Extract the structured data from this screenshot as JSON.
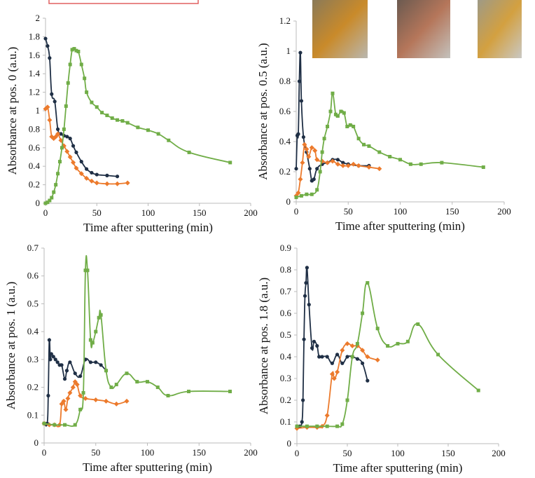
{
  "chart_data": [
    {
      "type": "line",
      "ylabel": "Absorbance at pos. 0 (a.u.)",
      "xlabel": "Time after sputtering (min)",
      "xlim": [
        0,
        200
      ],
      "ylim": [
        0,
        2
      ],
      "xticks": [
        0,
        50,
        100,
        150,
        200
      ],
      "yticks": [
        0,
        0.2,
        0.4,
        0.6,
        0.8,
        1,
        1.2,
        1.4,
        1.6,
        1.8,
        2
      ],
      "series": [
        {
          "color": "#1f2f45",
          "marker": "circle",
          "x": [
            0,
            2,
            4,
            6,
            9,
            12,
            15,
            18,
            21,
            24,
            27,
            30,
            35,
            40,
            45,
            50,
            60,
            70
          ],
          "values": [
            1.78,
            1.7,
            1.57,
            1.18,
            1.1,
            0.8,
            0.75,
            0.73,
            0.72,
            0.7,
            0.62,
            0.55,
            0.45,
            0.37,
            0.33,
            0.31,
            0.3,
            0.29
          ]
        },
        {
          "color": "#ec7a2c",
          "marker": "diamond",
          "x": [
            0,
            2,
            4,
            6,
            8,
            10,
            12,
            15,
            18,
            21,
            24,
            27,
            30,
            35,
            40,
            45,
            50,
            60,
            70,
            80
          ],
          "values": [
            1.02,
            1.04,
            0.9,
            0.72,
            0.7,
            0.72,
            0.75,
            0.68,
            0.62,
            0.56,
            0.5,
            0.44,
            0.38,
            0.32,
            0.27,
            0.24,
            0.22,
            0.21,
            0.21,
            0.22
          ]
        },
        {
          "color": "#70ad47",
          "marker": "square",
          "x": [
            0,
            2,
            4,
            6,
            8,
            10,
            12,
            14,
            16,
            18,
            20,
            22,
            24,
            26,
            28,
            30,
            32,
            35,
            38,
            40,
            45,
            50,
            55,
            60,
            65,
            70,
            75,
            80,
            90,
            100,
            110,
            120,
            140,
            180
          ],
          "values": [
            0,
            0.01,
            0.03,
            0.06,
            0.12,
            0.2,
            0.32,
            0.45,
            0.6,
            0.8,
            1.05,
            1.3,
            1.5,
            1.66,
            1.67,
            1.65,
            1.64,
            1.5,
            1.35,
            1.2,
            1.09,
            1.04,
            0.98,
            0.95,
            0.92,
            0.9,
            0.89,
            0.87,
            0.82,
            0.79,
            0.75,
            0.68,
            0.55,
            0.44
          ]
        }
      ]
    },
    {
      "type": "line",
      "ylabel": "Absorbance at pos. 0.5 (a.u.)",
      "xlabel": "Time after sputtering (min)",
      "xlim": [
        0,
        200
      ],
      "ylim": [
        0,
        1.2
      ],
      "xticks": [
        0,
        50,
        100,
        150,
        200
      ],
      "yticks": [
        0,
        0.2,
        0.4,
        0.6,
        0.8,
        1,
        1.2
      ],
      "series": [
        {
          "color": "#1f2f45",
          "marker": "circle",
          "x": [
            0,
            1,
            2,
            3,
            4,
            5,
            7,
            10,
            13,
            15,
            17,
            20,
            25,
            30,
            35,
            40,
            45,
            50,
            60,
            70
          ],
          "values": [
            0.22,
            0.44,
            0.45,
            0.8,
            0.99,
            0.67,
            0.43,
            0.33,
            0.22,
            0.14,
            0.15,
            0.22,
            0.25,
            0.26,
            0.28,
            0.28,
            0.26,
            0.25,
            0.24,
            0.24
          ]
        },
        {
          "color": "#ec7a2c",
          "marker": "diamond",
          "x": [
            0,
            2,
            4,
            6,
            8,
            10,
            12,
            15,
            18,
            20,
            25,
            30,
            35,
            40,
            45,
            50,
            55,
            60,
            70,
            80
          ],
          "values": [
            0.04,
            0.06,
            0.15,
            0.26,
            0.38,
            0.35,
            0.3,
            0.36,
            0.34,
            0.28,
            0.27,
            0.26,
            0.27,
            0.25,
            0.24,
            0.24,
            0.25,
            0.24,
            0.23,
            0.22
          ]
        },
        {
          "color": "#70ad47",
          "marker": "square",
          "x": [
            0,
            5,
            10,
            15,
            20,
            23,
            25,
            27,
            30,
            33,
            35,
            38,
            40,
            43,
            46,
            49,
            52,
            55,
            60,
            65,
            70,
            80,
            90,
            100,
            110,
            120,
            140,
            180
          ],
          "values": [
            0.03,
            0.04,
            0.05,
            0.05,
            0.08,
            0.2,
            0.33,
            0.42,
            0.5,
            0.6,
            0.72,
            0.58,
            0.57,
            0.6,
            0.59,
            0.5,
            0.51,
            0.5,
            0.42,
            0.38,
            0.37,
            0.33,
            0.3,
            0.28,
            0.25,
            0.25,
            0.26,
            0.23
          ]
        }
      ]
    },
    {
      "type": "line",
      "ylabel": "Absorbance at pos. 1 (a.u.)",
      "xlabel": "Time after sputtering (min)",
      "xlim": [
        0,
        200
      ],
      "ylim": [
        0,
        0.7
      ],
      "xticks": [
        0,
        50,
        100,
        150,
        200
      ],
      "yticks": [
        0,
        0.1,
        0.2,
        0.3,
        0.4,
        0.5,
        0.6,
        0.7
      ],
      "series": [
        {
          "color": "#1f2f45",
          "marker": "circle",
          "x": [
            0,
            3,
            4,
            5,
            6,
            7,
            9,
            11,
            13,
            15,
            17,
            20,
            22,
            25,
            30,
            35,
            40,
            45,
            50,
            55,
            60
          ],
          "values": [
            0.07,
            0.07,
            0.17,
            0.37,
            0.3,
            0.32,
            0.31,
            0.3,
            0.29,
            0.28,
            0.28,
            0.23,
            0.26,
            0.29,
            0.25,
            0.24,
            0.3,
            0.29,
            0.29,
            0.28,
            0.26
          ]
        },
        {
          "color": "#ec7a2c",
          "marker": "diamond",
          "x": [
            0,
            5,
            10,
            15,
            17,
            19,
            21,
            23,
            25,
            28,
            30,
            32,
            35,
            40,
            50,
            60,
            70,
            80
          ],
          "values": [
            0.07,
            0.065,
            0.065,
            0.065,
            0.14,
            0.15,
            0.12,
            0.16,
            0.18,
            0.2,
            0.22,
            0.21,
            0.17,
            0.16,
            0.155,
            0.15,
            0.14,
            0.15
          ]
        },
        {
          "color": "#70ad47",
          "marker": "square",
          "x": [
            0,
            10,
            20,
            30,
            35,
            38,
            40,
            42,
            45,
            47,
            50,
            53,
            55,
            60,
            65,
            70,
            80,
            90,
            100,
            110,
            120,
            140,
            180
          ],
          "values": [
            0.07,
            0.065,
            0.065,
            0.065,
            0.12,
            0.18,
            0.62,
            0.62,
            0.37,
            0.36,
            0.4,
            0.45,
            0.46,
            0.26,
            0.2,
            0.21,
            0.25,
            0.22,
            0.22,
            0.2,
            0.17,
            0.185,
            0.185
          ]
        }
      ]
    },
    {
      "type": "line",
      "ylabel": "Absorbance at pos. 1.8 (a.u.)",
      "xlabel": "Time after sputtering (min)",
      "xlim": [
        0,
        200
      ],
      "ylim": [
        0,
        0.9
      ],
      "xticks": [
        0,
        50,
        100,
        150,
        200
      ],
      "yticks": [
        0,
        0.1,
        0.2,
        0.3,
        0.4,
        0.5,
        0.6,
        0.7,
        0.8,
        0.9
      ],
      "series": [
        {
          "color": "#1f2f45",
          "marker": "circle",
          "x": [
            0,
            3,
            5,
            6,
            7,
            8,
            9,
            10,
            12,
            15,
            17,
            20,
            22,
            25,
            30,
            35,
            40,
            45,
            50,
            55,
            60,
            65,
            70
          ],
          "values": [
            0.08,
            0.08,
            0.1,
            0.2,
            0.48,
            0.68,
            0.74,
            0.81,
            0.64,
            0.44,
            0.47,
            0.45,
            0.4,
            0.4,
            0.4,
            0.37,
            0.41,
            0.37,
            0.4,
            0.4,
            0.39,
            0.37,
            0.29
          ]
        },
        {
          "color": "#ec7a2c",
          "marker": "diamond",
          "x": [
            0,
            10,
            20,
            25,
            30,
            35,
            37,
            40,
            45,
            50,
            55,
            60,
            65,
            70,
            80
          ],
          "values": [
            0.07,
            0.075,
            0.075,
            0.08,
            0.13,
            0.32,
            0.3,
            0.33,
            0.43,
            0.46,
            0.45,
            0.45,
            0.43,
            0.4,
            0.385
          ]
        },
        {
          "color": "#70ad47",
          "marker": "square",
          "x": [
            0,
            10,
            20,
            30,
            40,
            45,
            50,
            55,
            60,
            65,
            70,
            80,
            90,
            100,
            110,
            120,
            140,
            180
          ],
          "values": [
            0.08,
            0.08,
            0.08,
            0.08,
            0.08,
            0.09,
            0.2,
            0.4,
            0.46,
            0.6,
            0.74,
            0.53,
            0.45,
            0.46,
            0.47,
            0.55,
            0.41,
            0.245
          ]
        }
      ]
    }
  ]
}
